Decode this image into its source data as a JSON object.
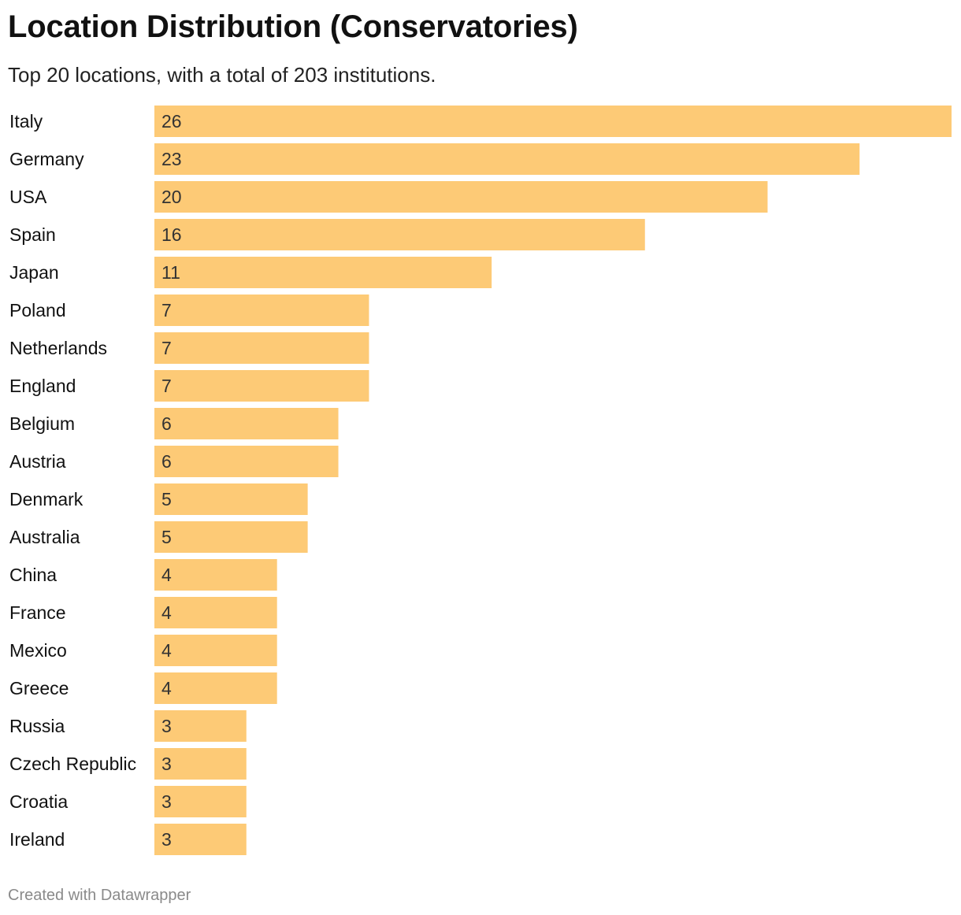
{
  "colors": {
    "bar": "#fdca76",
    "text": "#111111",
    "value_text": "#333333",
    "footer_text": "#8a8a8a"
  },
  "chart_data": {
    "type": "bar",
    "orientation": "horizontal",
    "title": "Location Distribution (Conservatories)",
    "subtitle": "Top 20 locations, with a total of 203 institutions.",
    "categories": [
      "Italy",
      "Germany",
      "USA",
      "Spain",
      "Japan",
      "Poland",
      "Netherlands",
      "England",
      "Belgium",
      "Austria",
      "Denmark",
      "Australia",
      "China",
      "France",
      "Mexico",
      "Greece",
      "Russia",
      "Czech Republic",
      "Croatia",
      "Ireland"
    ],
    "values": [
      26,
      23,
      20,
      16,
      11,
      7,
      7,
      7,
      6,
      6,
      5,
      5,
      4,
      4,
      4,
      4,
      3,
      3,
      3,
      3
    ],
    "xlim": [
      0,
      26
    ],
    "grid": false,
    "legend": "none",
    "xlabel": "",
    "ylabel": ""
  },
  "footer": {
    "credit": "Created with Datawrapper"
  }
}
